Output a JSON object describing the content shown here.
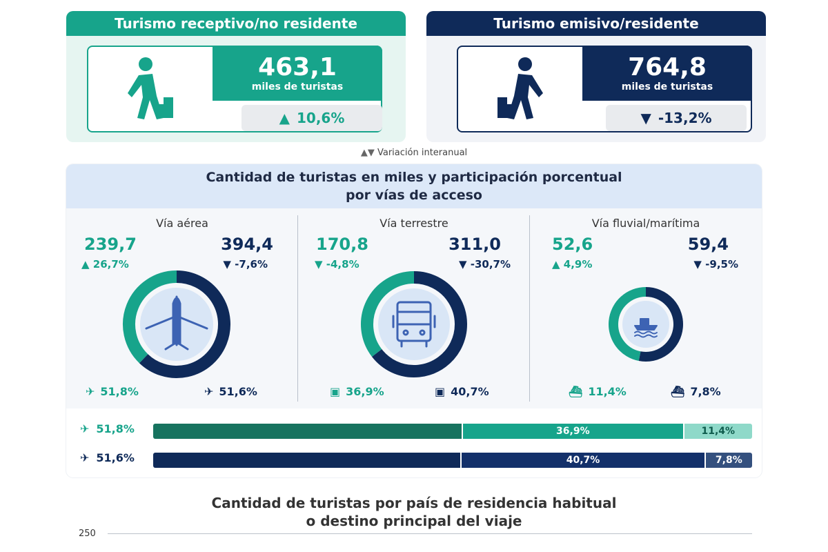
{
  "receptivo": {
    "title": "Turismo receptivo/no residente",
    "value": "463,1",
    "unit": "miles de turistas",
    "variation": "10,6%",
    "variation_dir": "up",
    "color": "#17a48b",
    "icon": "walking-person-luggage-icon"
  },
  "emisivo": {
    "title": "Turismo emisivo/residente",
    "value": "764,8",
    "unit": "miles de turistas",
    "variation": "-13,2%",
    "variation_dir": "down",
    "color": "#0f2a59",
    "icon": "walking-person-luggage-icon"
  },
  "variation_legend": "Variación interanual",
  "access_panel": {
    "title_line1": "Cantidad de turistas en miles y participación porcentual",
    "title_line2": "por vías de acceso",
    "columns": [
      {
        "name": "Vía aérea",
        "icon": "airplane-icon",
        "rec_value": "239,7",
        "rec_var": "26,7%",
        "rec_dir": "up",
        "emi_value": "394,4",
        "emi_var": "-7,6%",
        "emi_dir": "down",
        "rec_share": "51,8%",
        "emi_share": "51,6%"
      },
      {
        "name": "Vía terrestre",
        "icon": "bus-icon",
        "rec_value": "170,8",
        "rec_var": "-4,8%",
        "rec_dir": "down",
        "emi_value": "311,0",
        "emi_var": "-30,7%",
        "emi_dir": "down",
        "rec_share": "36,9%",
        "emi_share": "40,7%"
      },
      {
        "name": "Vía fluvial/marítima",
        "icon": "ship-icon",
        "rec_value": "52,6",
        "rec_var": "4,9%",
        "rec_dir": "up",
        "emi_value": "59,4",
        "emi_var": "-9,5%",
        "emi_dir": "down",
        "rec_share": "11,4%",
        "emi_share": "7,8%"
      }
    ],
    "bars": [
      {
        "label": "51,8%",
        "segments": [
          {
            "value": 51.8,
            "label": "",
            "color": "#17735f"
          },
          {
            "value": 36.9,
            "label": "36,9%",
            "color": "#17a48b"
          },
          {
            "value": 11.4,
            "label": "11,4%",
            "color": "#8fd9c9"
          }
        ]
      },
      {
        "label": "51,6%",
        "segments": [
          {
            "value": 51.6,
            "label": "",
            "color": "#0f2a59"
          },
          {
            "value": 40.7,
            "label": "40,7%",
            "color": "#13306a"
          },
          {
            "value": 7.8,
            "label": "7,8%",
            "color": "#34507e"
          }
        ]
      }
    ]
  },
  "country_chart": {
    "title_line1": "Cantidad de turistas por país de residencia habitual",
    "title_line2": "o destino principal del viaje",
    "y_tick": "250"
  },
  "chart_data": [
    {
      "type": "pie",
      "title": "Vía aérea",
      "categories": [
        "Receptivo",
        "Emisivo"
      ],
      "values": [
        239.7,
        394.4
      ]
    },
    {
      "type": "pie",
      "title": "Vía terrestre",
      "categories": [
        "Receptivo",
        "Emisivo"
      ],
      "values": [
        170.8,
        311.0
      ]
    },
    {
      "type": "pie",
      "title": "Vía fluvial/marítima",
      "categories": [
        "Receptivo",
        "Emisivo"
      ],
      "values": [
        52.6,
        59.4
      ]
    },
    {
      "type": "bar",
      "title": "",
      "categories": [
        "Vía aérea",
        "Vía terrestre",
        "Vía fluvial/marítima"
      ],
      "series": [
        {
          "name": "",
          "values": [
            51.8,
            36.9,
            11.4
          ]
        },
        {
          "name": "",
          "values": [
            51.6,
            40.7,
            7.8
          ]
        }
      ]
    }
  ]
}
